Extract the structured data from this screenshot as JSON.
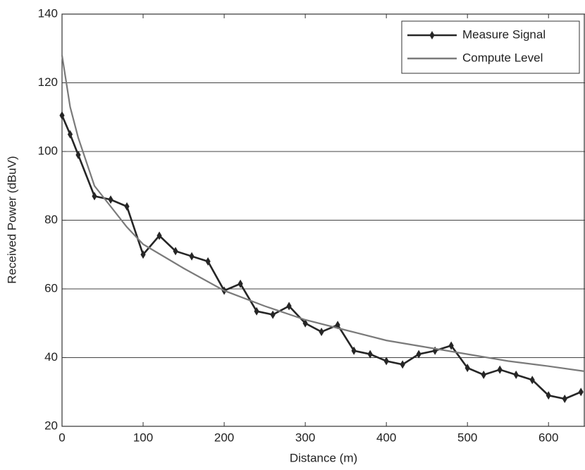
{
  "chart_data": {
    "type": "line",
    "x_label": "Distance (m)",
    "y_label": "Received Power (dBuV)",
    "xlim": [
      0,
      645
    ],
    "ylim": [
      20,
      140
    ],
    "xticks": [
      0,
      100,
      200,
      300,
      400,
      500,
      600
    ],
    "yticks": [
      20,
      40,
      60,
      80,
      100,
      120,
      140
    ],
    "grid": "y",
    "legend": "top-right",
    "series": [
      {
        "name": "Measure Signal",
        "color": "#262626",
        "marker": "diamond",
        "x": [
          0,
          10,
          20,
          40,
          60,
          80,
          100,
          120,
          140,
          160,
          180,
          200,
          220,
          240,
          260,
          280,
          300,
          320,
          340,
          360,
          380,
          400,
          420,
          440,
          460,
          480,
          500,
          520,
          540,
          560,
          580,
          600,
          620,
          640
        ],
        "values": [
          110.5,
          105,
          99,
          87,
          86,
          84,
          70,
          75.5,
          71,
          69.5,
          68,
          59.5,
          61.5,
          53.5,
          52.5,
          55,
          50,
          47.5,
          49.5,
          42,
          41,
          39,
          38,
          41,
          42,
          43.5,
          37,
          35,
          36.5,
          35,
          33.5,
          29,
          28,
          30
        ]
      },
      {
        "name": "Compute Level",
        "color": "#7a7a7a",
        "x": [
          0,
          10,
          20,
          40,
          60,
          80,
          100,
          150,
          200,
          250,
          300,
          350,
          400,
          450,
          500,
          550,
          600,
          645
        ],
        "values": [
          128,
          113,
          104,
          90,
          84,
          78,
          73,
          66,
          59.5,
          55,
          51,
          48,
          45,
          43,
          41,
          39,
          37.5,
          36
        ]
      }
    ]
  }
}
